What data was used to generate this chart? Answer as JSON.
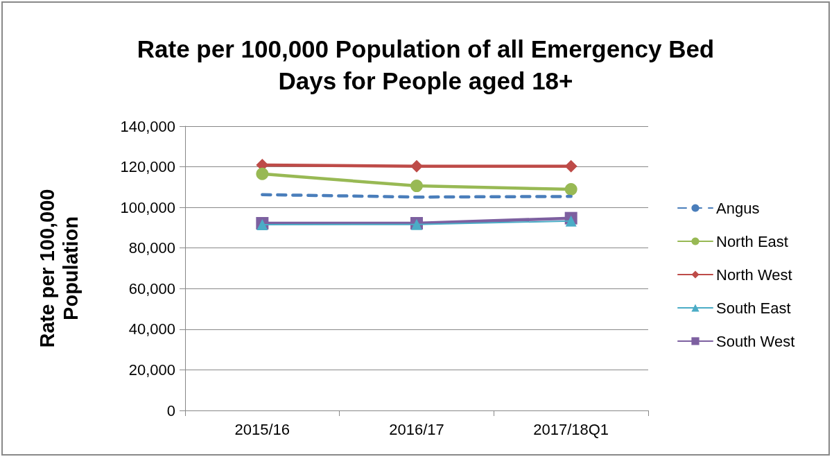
{
  "chart_data": {
    "type": "line",
    "title": "Rate per 100,000 Population of all Emergency Bed\nDays for People aged 18+",
    "ylabel": "Rate per 100,000\nPopulation",
    "categories": [
      "2015/16",
      "2016/17",
      "2017/18Q1"
    ],
    "series": [
      {
        "name": "Angus",
        "color": "#4a7ebb",
        "values": [
          106300,
          105100,
          105400
        ],
        "marker": "none",
        "line_style": "dashed"
      },
      {
        "name": "North East",
        "color": "#98b954",
        "values": [
          116500,
          110600,
          108900
        ],
        "marker": "circle",
        "line_style": "solid"
      },
      {
        "name": "North West",
        "color": "#be4b48",
        "values": [
          120900,
          120300,
          120300
        ],
        "marker": "diamond",
        "line_style": "solid"
      },
      {
        "name": "South East",
        "color": "#4bacc6",
        "values": [
          91500,
          91600,
          93300
        ],
        "marker": "triangle",
        "line_style": "solid"
      },
      {
        "name": "South West",
        "color": "#7d60a0",
        "values": [
          92200,
          92200,
          94700
        ],
        "marker": "square",
        "line_style": "solid"
      }
    ],
    "ylim": [
      0,
      140000
    ],
    "yticks": [
      0,
      {
        "value": 20000,
        "label": "20,000"
      },
      {
        "value": 40000,
        "label": "40,000"
      },
      {
        "value": 60000,
        "label": "60,000"
      },
      {
        "value": 80000,
        "label": "80,000"
      },
      {
        "value": 100000,
        "label": "100,000"
      },
      {
        "value": 120000,
        "label": "120,000"
      },
      {
        "value": 140000,
        "label": "140,000"
      }
    ],
    "grid": "y",
    "legend": "right"
  }
}
